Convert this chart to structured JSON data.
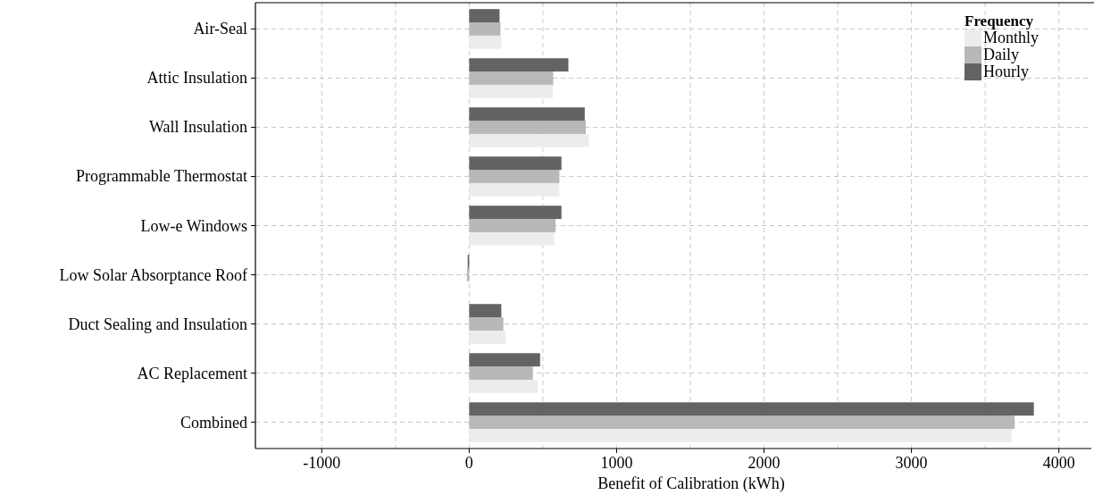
{
  "chart_data": {
    "type": "bar",
    "orientation": "horizontal",
    "xlabel": "Benefit of Calibration (kWh)",
    "legend_title": "Frequency",
    "legend": "top right",
    "grid": true,
    "categories": [
      "Air-Seal",
      "Attic Insulation",
      "Wall Insulation",
      "Programmable Thermostat",
      "Low-e Windows",
      "Low Solar Absorptance Roof",
      "Duct Sealing and Insulation",
      "AC Replacement",
      "Combined"
    ],
    "series": [
      {
        "name": "Monthly",
        "color": "#ececec",
        "values": [
          218,
          568,
          812,
          612,
          576,
          null,
          247,
          465,
          3680
        ]
      },
      {
        "name": "Daily",
        "color": "#b8b8b8",
        "values": [
          212,
          570,
          791,
          612,
          586,
          -15,
          232,
          432,
          3700
        ]
      },
      {
        "name": "Hourly",
        "color": "#636363",
        "values": [
          206,
          673,
          784,
          626,
          626,
          -10,
          218,
          481,
          3830
        ]
      }
    ],
    "xlim": [
      -1450,
      4220
    ],
    "xticks": [
      -1000,
      {
        "value": -500,
        "label": null
      },
      0,
      {
        "value": 500,
        "label": null
      },
      1000,
      {
        "value": 1500,
        "label": null
      },
      2000,
      {
        "value": 2500,
        "label": null
      },
      3000,
      {
        "value": 3500,
        "label": null
      },
      4000
    ]
  }
}
